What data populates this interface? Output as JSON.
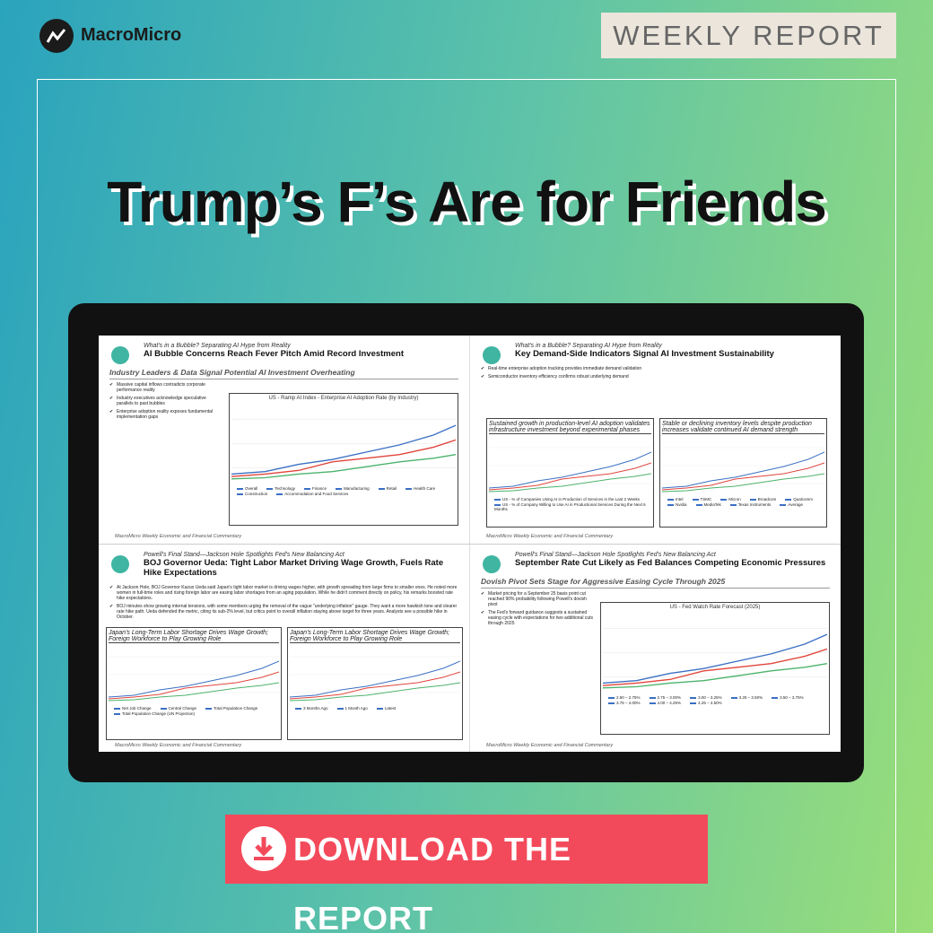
{
  "brand": "MacroMicro",
  "badge": "WEEKLY REPORT",
  "title": "Trump’s F’s Are for Friends",
  "panels": [
    {
      "kicker": "What's in a Bubble? Separating AI Hype from Reality",
      "heading": "AI Bubble Concerns Reach Fever Pitch Amid Record Investment",
      "section": "Industry Leaders & Data Signal Potential AI Investment Overheating",
      "bullets": [
        "Massive capital inflows contradicts corporate performance reality",
        "Industry executives acknowledge speculative parallels to past bubbles",
        "Enterprise adoption reality exposes fundamental implementation gaps"
      ],
      "charts": [
        {
          "title": "US - Ramp AI Index - Enterprise AI Adoption Rate (by Industry)",
          "legend": [
            "Overall",
            "Technology",
            "Finance",
            "Manufacturing",
            "Retail",
            "Health Care",
            "Construction",
            "Accommodation and Food Services"
          ]
        }
      ],
      "footer": "MacroMicro Weekly Economic and Financial Commentary"
    },
    {
      "kicker": "What's in a Bubble? Separating AI Hype from Reality",
      "heading": "Key Demand-Side Indicators Signal AI Investment Sustainability",
      "bullets": [
        "Real-time enterprise adoption tracking provides immediate demand validation",
        "Semiconductor inventory efficiency confirms robust underlying demand"
      ],
      "charts": [
        {
          "title": "Sustained growth in production-level AI adoption validates infrastructure investment beyond experimental phases",
          "legend": [
            "US - % of Companies Using AI in Production of Services in the Last 2 Weeks",
            "US - % of Company Willing to Use AI in Productional Services During the Next 6 Months"
          ]
        },
        {
          "title": "Stable or declining inventory levels despite production increases validate continued AI demand strength",
          "legend": [
            "Intel",
            "TSMC",
            "Micron",
            "Broadcom",
            "Qualcomm",
            "Nvidia",
            "MediaTek",
            "Texas Instruments",
            "Average"
          ]
        }
      ],
      "footer": "MacroMicro Weekly Economic and Financial Commentary"
    },
    {
      "kicker": "Powell's Final Stand—Jackson Hole Spotlights Fed's New Balancing Act",
      "heading": "BOJ Governor Ueda: Tight Labor Market Driving Wage Growth, Fuels Rate Hike Expectations",
      "bullets": [
        "At Jackson Hole, BOJ Governor Kazuo Ueda said Japan's tight labor market is driving wages higher, with growth spreading from large firms to smaller ones. He noted more women in full-time roles and rising foreign labor are easing labor shortages from an aging population. While he didn't comment directly on policy, his remarks boosted rate hike expectations.",
        "BOJ minutes show growing internal tensions, with some members urging the removal of the vague \"underlying inflation\" gauge. They want a more hawkish tone and clearer rate hike path. Ueda defended the metric, citing its sub-2% level, but critics point to overall inflation staying above target for three years. Analysts see a possible hike in October."
      ],
      "charts": [
        {
          "title": "Japan's Long-Term Labor Shortage Drives Wage Growth; Foreign Workforce to Play Growing Role",
          "legend": [
            "Net Job Change",
            "Central Change",
            "Total Population Change",
            "Total Population Change (UN Projection)"
          ]
        },
        {
          "title": "Japan's Long-Term Labor Shortage Drives Wage Growth; Foreign Workforce to Play Growing Role",
          "legend": [
            "3 Months Ago",
            "1 Month Ago",
            "Latest"
          ]
        }
      ],
      "footer": "MacroMicro Weekly Economic and Financial Commentary"
    },
    {
      "kicker": "Powell's Final Stand—Jackson Hole Spotlights Fed's New Balancing Act",
      "heading": "September Rate Cut Likely as Fed Balances Competing Economic Pressures",
      "section": "Dovish Pivot Sets Stage for Aggressive Easing Cycle Through 2025",
      "bullets": [
        "Market pricing for a September 25 basis point cut reached 90% probability following Powell's dovish pivot",
        "The Fed's forward guidance suggests a sustained easing cycle with expectations for two additional cuts through 2025"
      ],
      "charts": [
        {
          "title": "US - Fed Watch Rate Forecast (2025)",
          "legend": [
            "2.50 – 2.75%",
            "2.75 – 3.00%",
            "3.00 – 3.25%",
            "3.25 – 3.50%",
            "3.50 – 3.75%",
            "3.75 – 4.00%",
            "4.00 – 4.25%",
            "4.25 – 4.50%"
          ]
        }
      ],
      "footer": "MacroMicro Weekly Economic and Financial Commentary"
    }
  ],
  "button": "DOWNLOAD THE REPORT"
}
